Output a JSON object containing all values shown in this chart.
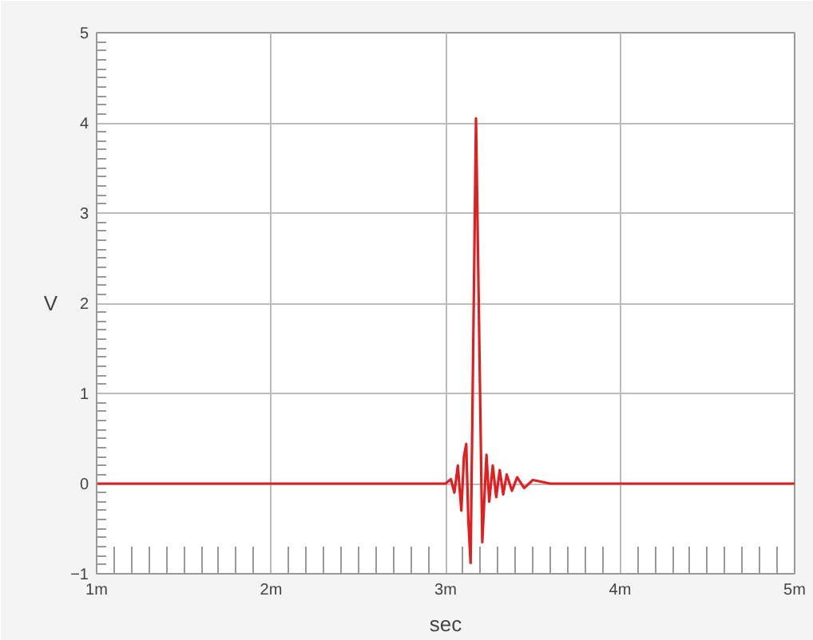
{
  "chart_data": {
    "type": "line",
    "xlabel": "sec",
    "ylabel": "V",
    "x": [
      1,
      2,
      3,
      3.03,
      3.05,
      3.07,
      3.09,
      3.105,
      3.118,
      3.13,
      3.143,
      3.174,
      3.21,
      3.234,
      3.25,
      3.27,
      3.29,
      3.31,
      3.33,
      3.35,
      3.38,
      3.41,
      3.45,
      3.5,
      3.6,
      4,
      5
    ],
    "series": [
      {
        "color": "#e02020",
        "values": [
          0,
          0,
          0,
          0.05,
          -0.1,
          0.2,
          -0.3,
          0.3,
          0.44,
          -0.4,
          -0.88,
          4.05,
          -0.65,
          0.32,
          -0.2,
          0.2,
          -0.15,
          0.15,
          -0.12,
          0.1,
          -0.08,
          0.07,
          -0.05,
          0.04,
          0,
          0,
          0
        ]
      }
    ],
    "xlim": [
      1,
      5
    ],
    "ylim": [
      -1,
      5
    ],
    "xticks": [
      {
        "value": 1,
        "label": "1m"
      },
      {
        "value": 2,
        "label": "2m"
      },
      {
        "value": 3,
        "label": "3m"
      },
      {
        "value": 4,
        "label": "4m"
      },
      {
        "value": 5,
        "label": "5m"
      }
    ],
    "yticks": [
      -1,
      0,
      1,
      2,
      3,
      4,
      5
    ],
    "grid": true,
    "marker": "none",
    "line_style": "solid"
  }
}
